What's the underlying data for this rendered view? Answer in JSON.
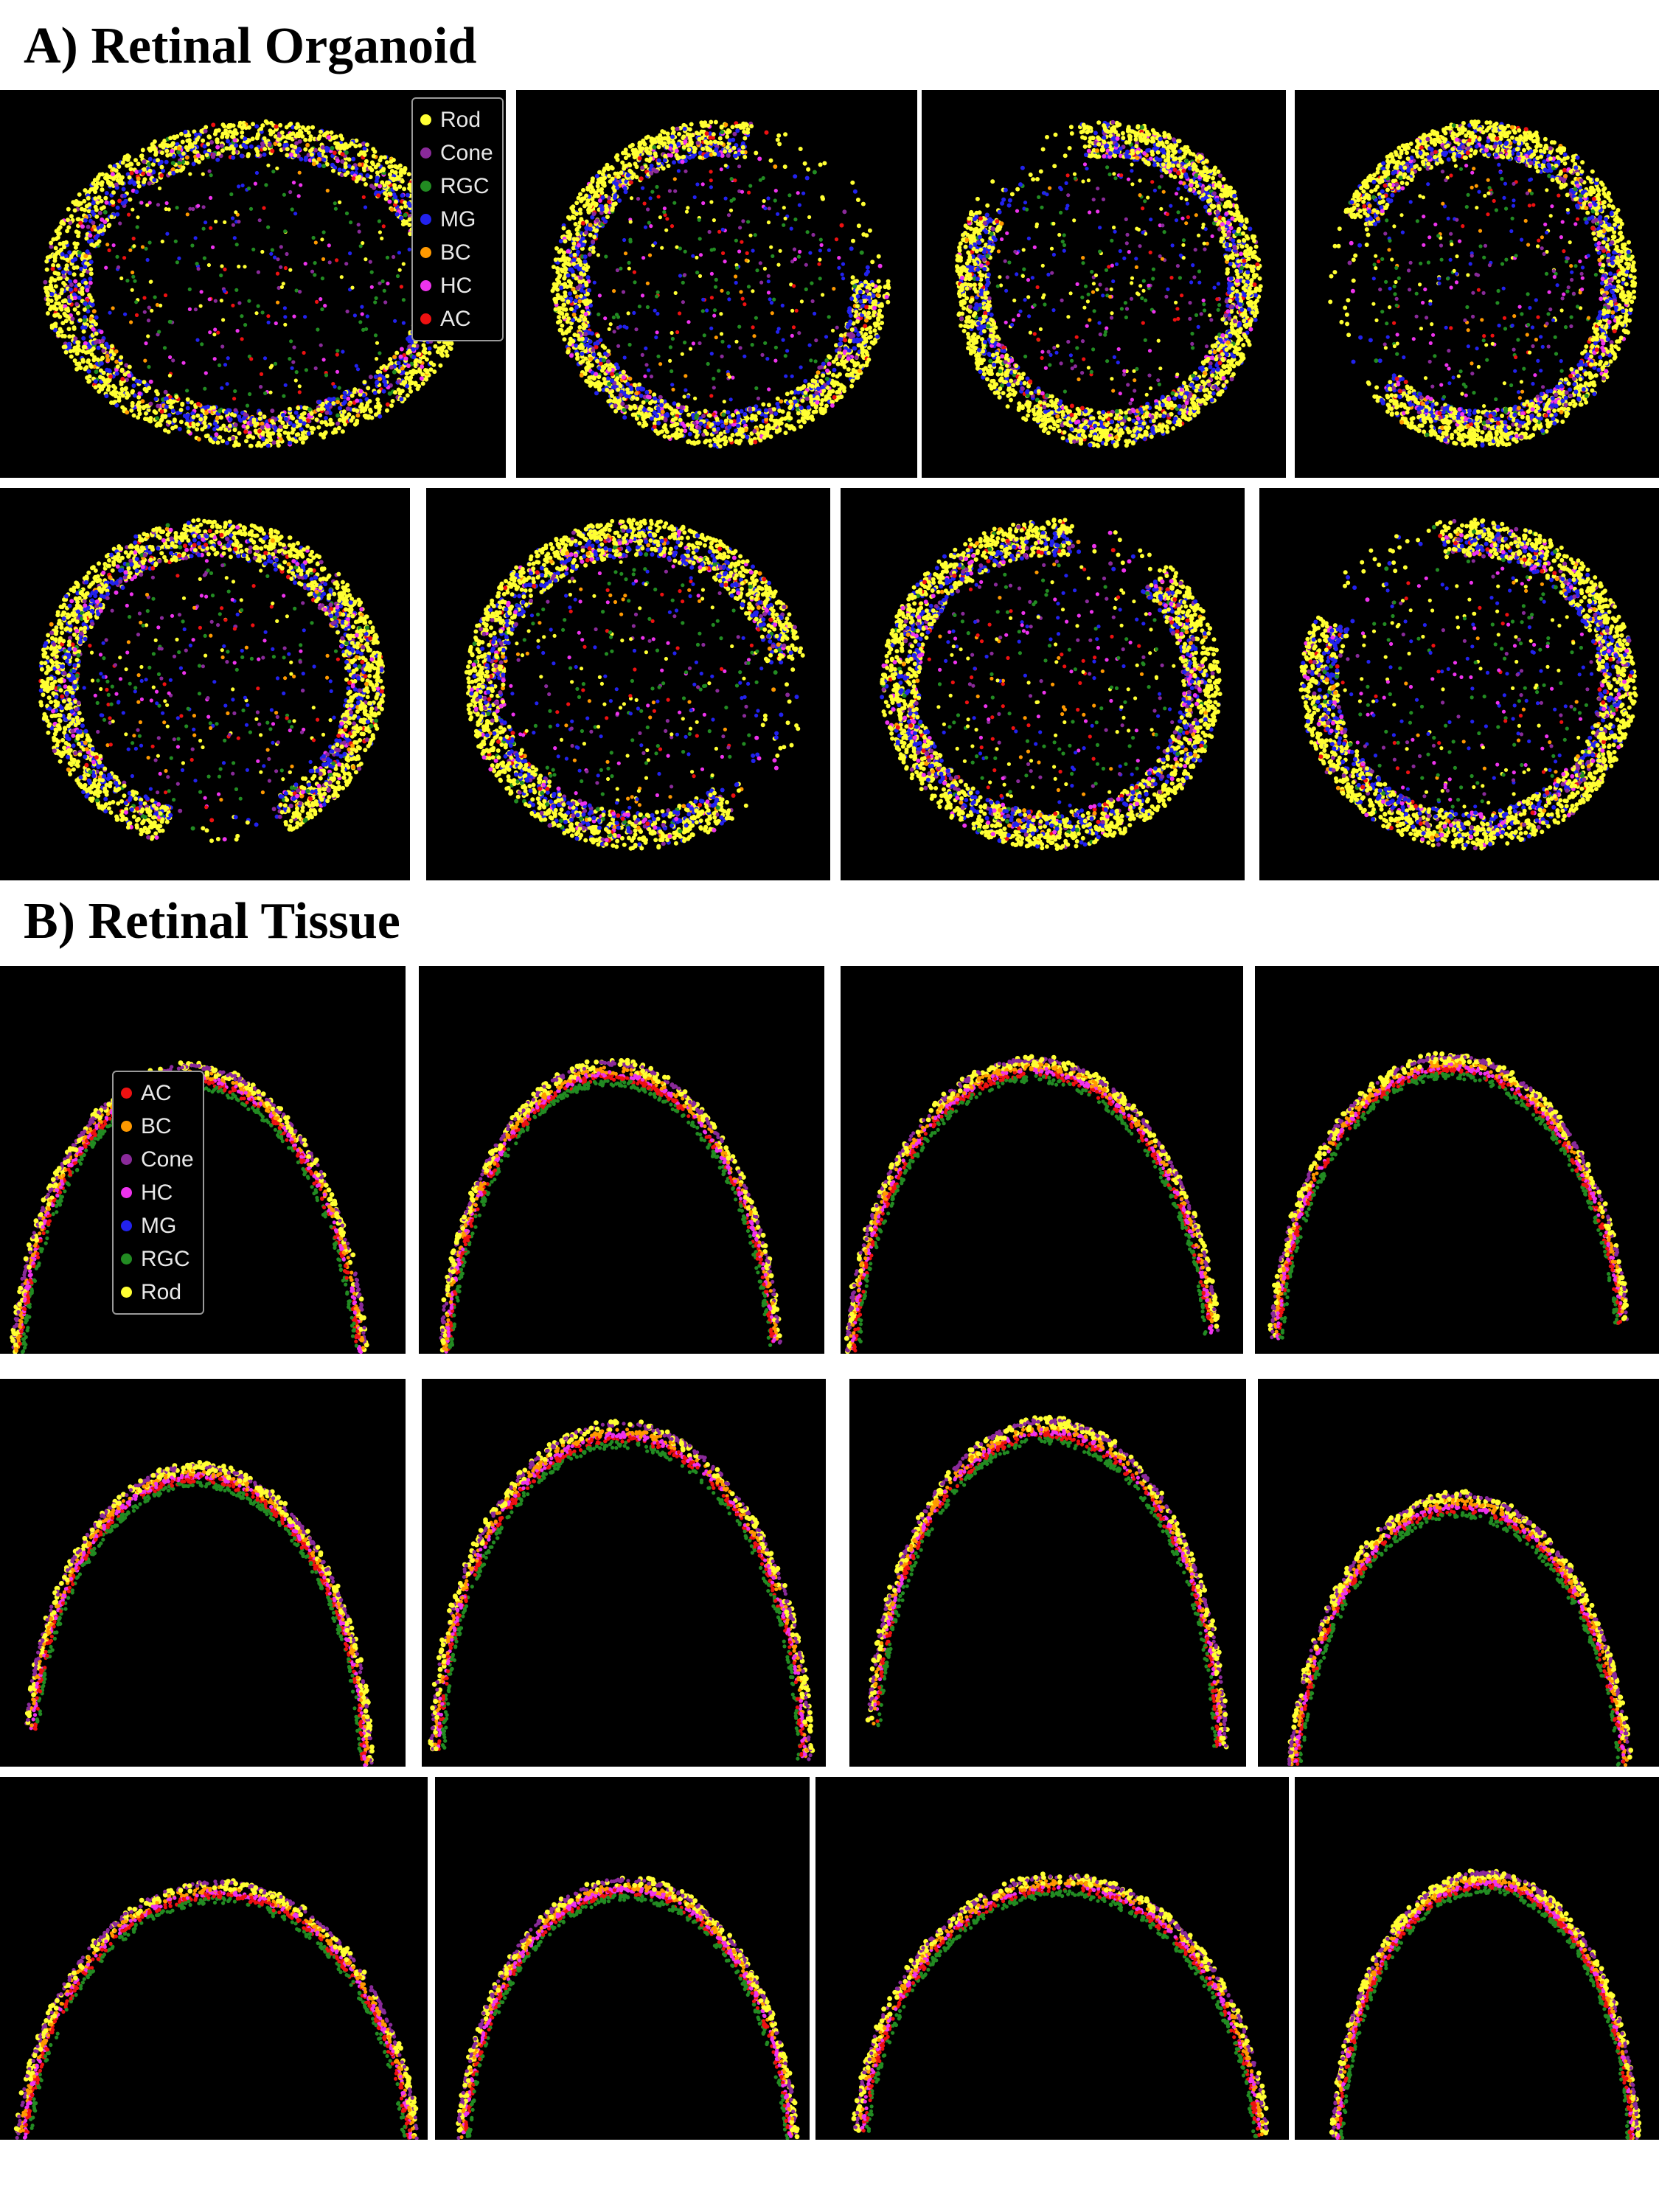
{
  "titles": {
    "a": "A) Retinal Organoid",
    "b": "B) Retinal Tissue"
  },
  "legend_a": [
    {
      "label": "Rod",
      "color": "#ffff33"
    },
    {
      "label": "Cone",
      "color": "#8a2a9a"
    },
    {
      "label": "RGC",
      "color": "#228b22"
    },
    {
      "label": "MG",
      "color": "#2222ee"
    },
    {
      "label": "BC",
      "color": "#ff9900"
    },
    {
      "label": "HC",
      "color": "#ee33ee"
    },
    {
      "label": "AC",
      "color": "#ee1111"
    }
  ],
  "legend_b": [
    {
      "label": "AC",
      "color": "#ee1111"
    },
    {
      "label": "BC",
      "color": "#ff9900"
    },
    {
      "label": "Cone",
      "color": "#8a2a9a"
    },
    {
      "label": "HC",
      "color": "#ee33ee"
    },
    {
      "label": "MG",
      "color": "#2222ee"
    },
    {
      "label": "RGC",
      "color": "#228b22"
    },
    {
      "label": "Rod",
      "color": "#ffff33"
    }
  ]
}
